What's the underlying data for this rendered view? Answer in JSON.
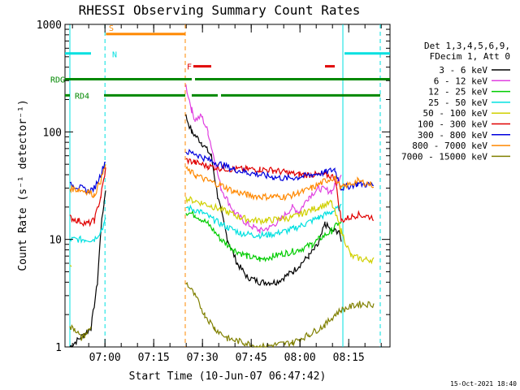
{
  "title": "RHESSI Observing Summary Count Rates",
  "footer_date": "15-Oct-2021 18:40",
  "legend_header": [
    "Det 1,3,4,5,6,9,",
    "FDecim 1, Att 0"
  ],
  "flag_labels": {
    "S": "S",
    "N": "N",
    "RDG": "RDG",
    "RD4": "RD4",
    "F": "F"
  },
  "chart_data": {
    "type": "line",
    "title": "RHESSI Observing Summary Count Rates",
    "xlabel": "Start Time (10-Jun-07 06:47:42)",
    "ylabel": "Count Rate (s⁻¹ detector⁻¹)",
    "y_scale": "log",
    "ylim": [
      1,
      1000
    ],
    "xlim_minutes_from_start": [
      0,
      100
    ],
    "x_ticks": [
      {
        "label": "07:00",
        "m": 12.3
      },
      {
        "label": "07:15",
        "m": 27.3
      },
      {
        "label": "07:30",
        "m": 42.3
      },
      {
        "label": "07:45",
        "m": 57.3
      },
      {
        "label": "08:00",
        "m": 72.3
      },
      {
        "label": "08:15",
        "m": 87.3
      }
    ],
    "y_ticks": [
      {
        "label": "1",
        "v": 1
      },
      {
        "label": "10",
        "v": 10
      },
      {
        "label": "100",
        "v": 100
      },
      {
        "label": "1000",
        "v": 1000
      }
    ],
    "gaps_minutes": [
      [
        12.6,
        37.0
      ]
    ],
    "series": [
      {
        "name": "3 - 6 keV",
        "color": "#000000",
        "points": [
          [
            1.5,
            1
          ],
          [
            8,
            1.5
          ],
          [
            10,
            4
          ],
          [
            11,
            12
          ],
          [
            12,
            22
          ],
          [
            12.5,
            30
          ],
          [
            37.2,
            140
          ],
          [
            39,
            100
          ],
          [
            42,
            80
          ],
          [
            45,
            60
          ],
          [
            47,
            25
          ],
          [
            50,
            10
          ],
          [
            53,
            6
          ],
          [
            56,
            4.5
          ],
          [
            60,
            4
          ],
          [
            65,
            4
          ],
          [
            70,
            5
          ],
          [
            75,
            7
          ],
          [
            78,
            9
          ],
          [
            80,
            14
          ],
          [
            82,
            12
          ],
          [
            84,
            12
          ],
          [
            85,
            10
          ]
        ]
      },
      {
        "name": "6 - 12 keV",
        "color": "#e040e0",
        "points": [
          [
            37.2,
            270
          ],
          [
            39,
            160
          ],
          [
            40,
            130
          ],
          [
            42,
            140
          ],
          [
            44,
            100
          ],
          [
            46,
            55
          ],
          [
            48,
            30
          ],
          [
            52,
            18
          ],
          [
            56,
            14
          ],
          [
            60,
            12
          ],
          [
            63,
            13
          ],
          [
            66,
            15
          ],
          [
            70,
            20
          ],
          [
            72,
            18
          ],
          [
            75,
            25
          ],
          [
            78,
            30
          ],
          [
            82,
            28
          ],
          [
            84,
            35
          ],
          [
            85,
            42
          ]
        ]
      },
      {
        "name": "12 - 25 keV",
        "color": "#00cc00",
        "points": [
          [
            37.2,
            18
          ],
          [
            40,
            17
          ],
          [
            44,
            14
          ],
          [
            48,
            10
          ],
          [
            52,
            8
          ],
          [
            56,
            7
          ],
          [
            60,
            6.5
          ],
          [
            64,
            7
          ],
          [
            68,
            7.5
          ],
          [
            72,
            8
          ],
          [
            76,
            9
          ],
          [
            78,
            10
          ],
          [
            82,
            12
          ],
          [
            84,
            14
          ],
          [
            85,
            14
          ]
        ]
      },
      {
        "name": "25 - 50 keV",
        "color": "#00e0e0",
        "points": [
          [
            1.5,
            10
          ],
          [
            6,
            10
          ],
          [
            9,
            10
          ],
          [
            11,
            12
          ],
          [
            12.5,
            15
          ],
          [
            37.2,
            20
          ],
          [
            42,
            18
          ],
          [
            46,
            15
          ],
          [
            50,
            13
          ],
          [
            54,
            11.5
          ],
          [
            58,
            11
          ],
          [
            62,
            11
          ],
          [
            66,
            11.5
          ],
          [
            70,
            12.5
          ],
          [
            74,
            14
          ],
          [
            78,
            16
          ],
          [
            82,
            18
          ],
          [
            85,
            20
          ]
        ]
      },
      {
        "name": "50 - 100 keV",
        "color": "#d0d000",
        "points": [
          [
            1.5,
            6
          ],
          [
            2,
            6
          ],
          [
            37.2,
            24
          ],
          [
            42,
            22
          ],
          [
            46,
            20
          ],
          [
            50,
            18
          ],
          [
            54,
            16
          ],
          [
            58,
            15
          ],
          [
            62,
            15
          ],
          [
            66,
            15.5
          ],
          [
            70,
            16
          ],
          [
            74,
            18
          ],
          [
            78,
            20
          ],
          [
            82,
            22
          ],
          [
            85,
            12
          ],
          [
            88,
            7
          ],
          [
            92,
            6.5
          ],
          [
            95,
            6.5
          ]
        ]
      },
      {
        "name": "100 - 300 keV",
        "color": "#e00000",
        "points": [
          [
            1.5,
            16
          ],
          [
            4,
            15
          ],
          [
            7,
            14
          ],
          [
            9,
            15
          ],
          [
            11,
            25
          ],
          [
            12.5,
            45
          ],
          [
            37.2,
            55
          ],
          [
            40,
            52
          ],
          [
            44,
            48
          ],
          [
            48,
            46
          ],
          [
            52,
            45
          ],
          [
            56,
            45
          ],
          [
            60,
            45
          ],
          [
            64,
            44
          ],
          [
            68,
            42
          ],
          [
            72,
            40
          ],
          [
            76,
            40
          ],
          [
            80,
            40
          ],
          [
            83,
            38
          ],
          [
            85,
            15
          ],
          [
            90,
            17
          ],
          [
            95,
            16
          ]
        ]
      },
      {
        "name": "300 - 800 keV",
        "color": "#0000dd",
        "points": [
          [
            1.5,
            32
          ],
          [
            4,
            31
          ],
          [
            7,
            28
          ],
          [
            9,
            30
          ],
          [
            11,
            40
          ],
          [
            12.5,
            55
          ],
          [
            37.2,
            65
          ],
          [
            40,
            63
          ],
          [
            44,
            55
          ],
          [
            48,
            50
          ],
          [
            52,
            45
          ],
          [
            56,
            42
          ],
          [
            60,
            40
          ],
          [
            64,
            38
          ],
          [
            68,
            37
          ],
          [
            72,
            38
          ],
          [
            76,
            40
          ],
          [
            80,
            42
          ],
          [
            83,
            45
          ],
          [
            85,
            30
          ],
          [
            90,
            33
          ],
          [
            95,
            32
          ]
        ]
      },
      {
        "name": "800 - 7000 keV",
        "color": "#ff8800",
        "points": [
          [
            1.5,
            30
          ],
          [
            4,
            29
          ],
          [
            7,
            28
          ],
          [
            9,
            26
          ],
          [
            11,
            35
          ],
          [
            12.5,
            50
          ],
          [
            37.2,
            45
          ],
          [
            40,
            40
          ],
          [
            44,
            35
          ],
          [
            48,
            32
          ],
          [
            52,
            28
          ],
          [
            56,
            26
          ],
          [
            60,
            25
          ],
          [
            64,
            25
          ],
          [
            68,
            25
          ],
          [
            72,
            27
          ],
          [
            76,
            30
          ],
          [
            80,
            35
          ],
          [
            83,
            38
          ],
          [
            85,
            30
          ],
          [
            90,
            35
          ],
          [
            95,
            32
          ]
        ]
      },
      {
        "name": "7000 - 15000 keV",
        "color": "#808000",
        "points": [
          [
            1.5,
            1.5
          ],
          [
            3,
            1.5
          ],
          [
            5,
            1.2
          ],
          [
            8,
            1.5
          ],
          [
            37.2,
            4
          ],
          [
            40,
            3
          ],
          [
            43,
            2
          ],
          [
            46,
            1.5
          ],
          [
            50,
            1.2
          ],
          [
            55,
            1.1
          ],
          [
            60,
            1
          ],
          [
            70,
            1.1
          ],
          [
            75,
            1.3
          ],
          [
            80,
            1.6
          ],
          [
            83,
            2
          ],
          [
            85,
            2.2
          ],
          [
            90,
            2.5
          ],
          [
            95,
            2.5
          ]
        ]
      }
    ],
    "flags": [
      {
        "name": "S",
        "color": "#ff8800",
        "level": 0.97,
        "segments": [
          [
            12.6,
            37.0
          ]
        ]
      },
      {
        "name": "N",
        "color": "#00e0e0",
        "level": 0.91,
        "segments": [
          [
            0,
            8
          ],
          [
            86,
            100
          ]
        ]
      },
      {
        "name": "RDG",
        "color": "#008800",
        "level": 0.83,
        "segments": [
          [
            0,
            39
          ],
          [
            40,
            100
          ]
        ]
      },
      {
        "name": "RD4",
        "color": "#008800",
        "level": 0.78,
        "segments": [
          [
            0,
            1.5
          ],
          [
            12,
            37
          ],
          [
            39,
            47
          ],
          [
            48,
            97
          ]
        ]
      },
      {
        "name": "F",
        "color": "#e00000",
        "level": 0.87,
        "segments": [
          [
            39.5,
            45
          ],
          [
            80,
            83
          ]
        ]
      }
    ],
    "vlines": [
      {
        "m": 1.5,
        "color": "#00e0e0",
        "dashed": false
      },
      {
        "m": 12.3,
        "color": "#00e0e0",
        "dashed": true
      },
      {
        "m": 37.0,
        "color": "#ff8800",
        "dashed": true
      },
      {
        "m": 85.5,
        "color": "#00e0e0",
        "dashed": false
      },
      {
        "m": 97.0,
        "color": "#00e0e0",
        "dashed": true
      }
    ]
  }
}
